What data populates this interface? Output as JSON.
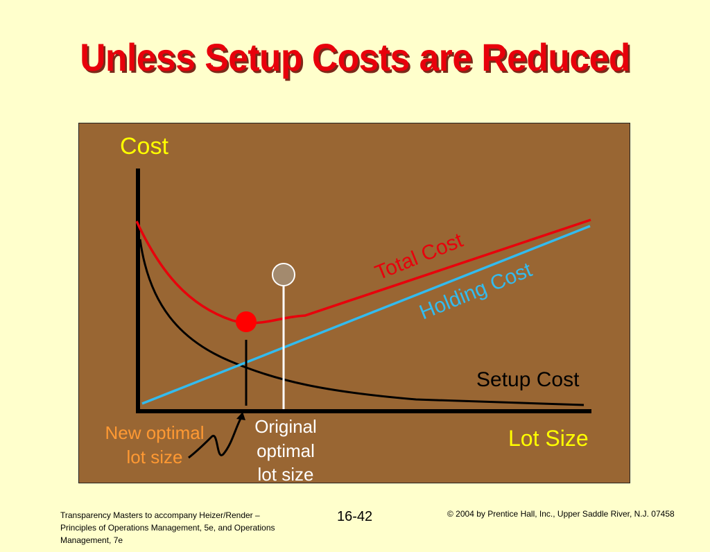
{
  "slide": {
    "title": "Unless Setup Costs are Reduced",
    "footer_left_line1": "Transparency Masters to accompany Heizer/Render –",
    "footer_left_line2": "Principles of Operations Management, 5e, and Operations",
    "footer_left_line3": "Management, 7e",
    "page_number": "16-42",
    "copyright": "© 2004 by Prentice Hall, Inc.,  Upper Saddle River, N.J. 07458"
  },
  "diagram": {
    "y_axis_label": "Cost",
    "x_axis_label": "Lot Size",
    "total_cost_label": "Total Cost",
    "holding_cost_label": "Holding Cost",
    "setup_cost_label": "Setup Cost",
    "new_optimal_label_line1": "New optimal",
    "new_optimal_label_line2": "lot size",
    "original_optimal_label_line1": "Original",
    "original_optimal_label_line2": "optimal",
    "original_optimal_label_line3": "lot size"
  },
  "colors": {
    "background": "#FFFFCC",
    "panel": "#996633",
    "title": "#E8000B",
    "total_cost": "#E8000B",
    "holding_cost": "#33BBEE",
    "setup_cost": "#000000",
    "axis_labels": "#FFFF00",
    "new_optimal_label": "#FF9933",
    "original_marker": "#A38A6E"
  }
}
